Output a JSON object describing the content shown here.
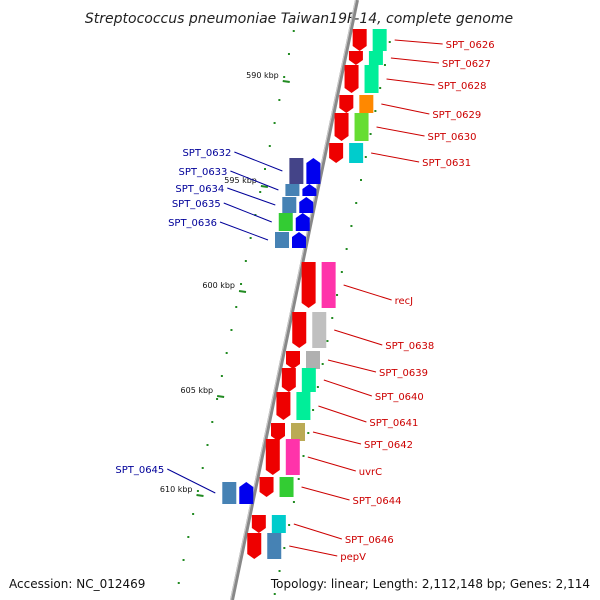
{
  "title": "Streptococcus pneumoniae Taiwan19F-14, complete genome",
  "footer": {
    "accession": "Accession: NC_012469",
    "topology": "Topology: linear; Length: 2,112,148 bp; Genes: 2,114"
  },
  "colors": {
    "forward_gene": "#0000ee",
    "reverse_gene": "#ee0000",
    "forward_label": "#000099",
    "reverse_label": "#cc0000",
    "tick": "#228b22",
    "backbone": "#888888"
  },
  "scale_ticks": [
    {
      "label": "590 kbp",
      "kbp": 590
    },
    {
      "label": "595 kbp",
      "kbp": 595
    },
    {
      "label": "600 kbp",
      "kbp": 600
    },
    {
      "label": "605 kbp",
      "kbp": 605
    },
    {
      "label": "610 kbp",
      "kbp": 610
    }
  ],
  "genes": [
    {
      "label": "SPT_0626",
      "strand": "reverse",
      "cog_color": "#00ee99"
    },
    {
      "label": "SPT_0627",
      "strand": "reverse",
      "cog_color": "#00ee99"
    },
    {
      "label": "SPT_0628",
      "strand": "reverse",
      "cog_color": "#00ee99"
    },
    {
      "label": "SPT_0629",
      "strand": "reverse",
      "cog_color": "#ff8800"
    },
    {
      "label": "SPT_0630",
      "strand": "reverse",
      "cog_color": "#66dd33"
    },
    {
      "label": "SPT_0631",
      "strand": "reverse",
      "cog_color": "#00cccc"
    },
    {
      "label": "SPT_0632",
      "strand": "forward",
      "cog_color": "#444488"
    },
    {
      "label": "SPT_0633",
      "strand": "forward",
      "cog_color": "#4682b4"
    },
    {
      "label": "SPT_0634",
      "strand": "forward",
      "cog_color": "#4682b4"
    },
    {
      "label": "SPT_0635",
      "strand": "forward",
      "cog_color": "#33cc33"
    },
    {
      "label": "SPT_0636",
      "strand": "forward",
      "cog_color": "#4682b4"
    },
    {
      "label": "recJ",
      "strand": "reverse",
      "cog_color": "#ff33aa"
    },
    {
      "label": "SPT_0638",
      "strand": "reverse",
      "cog_color": "#c0c0c0"
    },
    {
      "label": "SPT_0639",
      "strand": "reverse",
      "cog_color": "#b0b0b0"
    },
    {
      "label": "SPT_0640",
      "strand": "reverse",
      "cog_color": "#00ee99"
    },
    {
      "label": "SPT_0641",
      "strand": "reverse",
      "cog_color": "#00ee99"
    },
    {
      "label": "SPT_0642",
      "strand": "reverse",
      "cog_color": "#bbaa55"
    },
    {
      "label": "uvrC",
      "strand": "reverse",
      "cog_color": "#ff33aa"
    },
    {
      "label": "SPT_0644",
      "strand": "reverse",
      "cog_color": "#33cc33"
    },
    {
      "label": "SPT_0645",
      "strand": "forward",
      "cog_color": "#4682b4"
    },
    {
      "label": "SPT_0646",
      "strand": "reverse",
      "cog_color": "#00cccc"
    },
    {
      "label": "pepV",
      "strand": "reverse",
      "cog_color": "#4682b4"
    }
  ]
}
